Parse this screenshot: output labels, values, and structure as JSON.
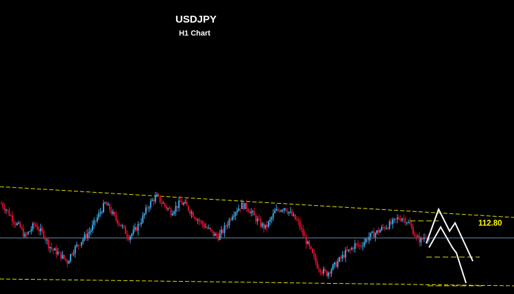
{
  "chart_data": {
    "type": "candlestick",
    "title": "USDJPY",
    "subtitle": "H1 Chart",
    "price_level": {
      "value": 112.8,
      "label": "112.80",
      "color": "#6f8fb0"
    },
    "colors": {
      "background": "#000000",
      "bull": "#3ea8e6",
      "bear": "#e0102c",
      "channel": "#e6e600",
      "projection": "#ffffff",
      "target_lines": "#e6e600",
      "price_text": "#ffff00",
      "title_text": "#ffffff"
    },
    "channel": {
      "upper": {
        "start": 113.55,
        "end": 113.1
      },
      "lower": {
        "start": 112.2,
        "end": 112.1
      }
    },
    "target_levels": [
      113.05,
      112.52,
      112.1
    ],
    "projection_path": [
      113.25,
      113.1,
      112.78,
      112.55,
      112.78,
      112.55,
      112.1
    ],
    "close_series": [
      113.3,
      113.22,
      113.12,
      113.02,
      112.95,
      112.82,
      112.9,
      113.0,
      112.92,
      112.85,
      112.7,
      112.62,
      112.58,
      112.52,
      112.45,
      112.6,
      112.68,
      112.76,
      112.84,
      112.92,
      113.05,
      113.18,
      113.3,
      113.22,
      113.1,
      113.02,
      112.92,
      112.82,
      112.88,
      112.98,
      113.1,
      113.25,
      113.35,
      113.4,
      113.32,
      113.25,
      113.18,
      113.25,
      113.32,
      113.28,
      113.2,
      113.12,
      113.05,
      112.98,
      112.92,
      112.85,
      112.82,
      112.9,
      113.02,
      113.15,
      113.22,
      113.28,
      113.25,
      113.18,
      113.08,
      113.0,
      112.95,
      113.05,
      113.18,
      113.22,
      113.25,
      113.18,
      113.1,
      113.02,
      112.85,
      112.7,
      112.55,
      112.4,
      112.32,
      112.28,
      112.35,
      112.42,
      112.5,
      112.58,
      112.62,
      112.7,
      112.68,
      112.75,
      112.82,
      112.86,
      112.9,
      112.95,
      112.98,
      113.02,
      113.08,
      113.1,
      113.05,
      112.95,
      112.8,
      112.76,
      112.84,
      112.78
    ]
  }
}
